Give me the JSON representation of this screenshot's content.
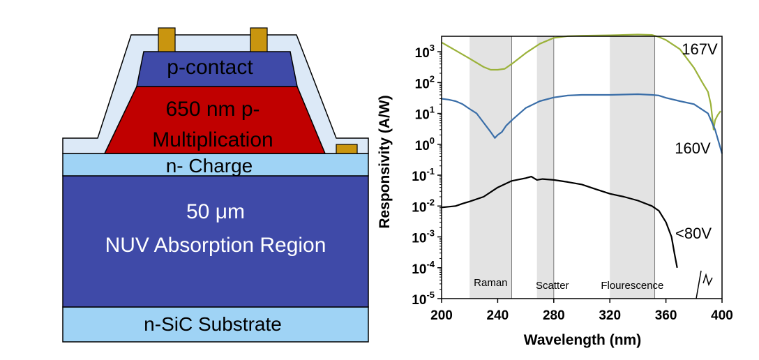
{
  "device": {
    "layers": {
      "p_contact": "p-contact",
      "multiplication_line1": "650 nm p-",
      "multiplication_line2": "Multiplication",
      "charge": "n- Charge",
      "absorption_line1": "50 μm",
      "absorption_line2": "NUV Absorption Region",
      "substrate": "n-SiC Substrate"
    },
    "colors": {
      "p_contact": "#3f4aa8",
      "multiplication": "#c00000",
      "charge": "#9fd3f5",
      "absorption": "#3f4aa8",
      "substrate": "#9fd3f5",
      "passivation": "#dce9f7",
      "metal": "#c9950f"
    }
  },
  "chart_data": {
    "type": "line",
    "title": "",
    "xlabel": "Wavelength (nm)",
    "ylabel": "Responsivity (A/W)",
    "xlim": [
      200,
      400
    ],
    "ylim_log10": [
      -5,
      3.5
    ],
    "yscale": "log",
    "x_ticks": [
      "200",
      "240",
      "280",
      "320",
      "360",
      "400"
    ],
    "y_ticks": [
      {
        "base": "10",
        "exp": "3"
      },
      {
        "base": "10",
        "exp": "2"
      },
      {
        "base": "10",
        "exp": "1"
      },
      {
        "base": "10",
        "exp": "0"
      },
      {
        "base": "10",
        "exp": "-1"
      },
      {
        "base": "10",
        "exp": "-2"
      },
      {
        "base": "10",
        "exp": "-3"
      },
      {
        "base": "10",
        "exp": "-4"
      },
      {
        "base": "10",
        "exp": "-5"
      }
    ],
    "bands": [
      {
        "label": "Raman",
        "from": 220,
        "to": 250
      },
      {
        "label": "Scatter",
        "from": 268,
        "to": 280
      },
      {
        "label": "Flourescence",
        "from": 320,
        "to": 352
      }
    ],
    "series": [
      {
        "name": "167V",
        "color": "#9bb23a",
        "points": [
          [
            200,
            2000
          ],
          [
            210,
            1100
          ],
          [
            220,
            600
          ],
          [
            230,
            320
          ],
          [
            235,
            260
          ],
          [
            240,
            260
          ],
          [
            245,
            280
          ],
          [
            250,
            400
          ],
          [
            260,
            900
          ],
          [
            270,
            1800
          ],
          [
            280,
            2800
          ],
          [
            290,
            3200
          ],
          [
            300,
            3300
          ],
          [
            320,
            3400
          ],
          [
            340,
            3600
          ],
          [
            350,
            3500
          ],
          [
            355,
            3000
          ],
          [
            360,
            2400
          ],
          [
            370,
            1200
          ],
          [
            380,
            300
          ],
          [
            386,
            100
          ],
          [
            390,
            50
          ],
          [
            392,
            20
          ],
          [
            393,
            8
          ],
          [
            394,
            3
          ],
          [
            395,
            6
          ],
          [
            397,
            9
          ],
          [
            399,
            12
          ]
        ]
      },
      {
        "name": "160V",
        "color": "#3a6ea8",
        "points": [
          [
            200,
            30
          ],
          [
            205,
            28
          ],
          [
            210,
            25
          ],
          [
            215,
            20
          ],
          [
            220,
            14
          ],
          [
            225,
            10
          ],
          [
            230,
            5
          ],
          [
            235,
            2.5
          ],
          [
            238,
            1.6
          ],
          [
            240,
            2.0
          ],
          [
            243,
            2.5
          ],
          [
            246,
            4
          ],
          [
            250,
            6
          ],
          [
            260,
            15
          ],
          [
            270,
            25
          ],
          [
            280,
            33
          ],
          [
            290,
            38
          ],
          [
            300,
            40
          ],
          [
            320,
            40
          ],
          [
            340,
            42
          ],
          [
            350,
            40
          ],
          [
            355,
            38
          ],
          [
            360,
            32
          ],
          [
            370,
            25
          ],
          [
            380,
            20
          ],
          [
            390,
            10
          ],
          [
            395,
            3
          ],
          [
            400,
            0.5
          ]
        ]
      },
      {
        "name": "<80V",
        "color": "#000000",
        "points": [
          [
            200,
            0.009
          ],
          [
            205,
            0.0095
          ],
          [
            210,
            0.01
          ],
          [
            215,
            0.012
          ],
          [
            220,
            0.014
          ],
          [
            230,
            0.02
          ],
          [
            240,
            0.04
          ],
          [
            250,
            0.065
          ],
          [
            260,
            0.08
          ],
          [
            264,
            0.09
          ],
          [
            268,
            0.07
          ],
          [
            272,
            0.075
          ],
          [
            280,
            0.07
          ],
          [
            290,
            0.06
          ],
          [
            300,
            0.05
          ],
          [
            310,
            0.035
          ],
          [
            320,
            0.025
          ],
          [
            330,
            0.02
          ],
          [
            340,
            0.015
          ],
          [
            350,
            0.01
          ],
          [
            355,
            0.007
          ],
          [
            360,
            0.003
          ],
          [
            364,
            0.001
          ],
          [
            366,
            0.0003
          ],
          [
            368,
            0.0001
          ]
        ]
      }
    ],
    "grid": false,
    "legend": "labels next to curves"
  }
}
